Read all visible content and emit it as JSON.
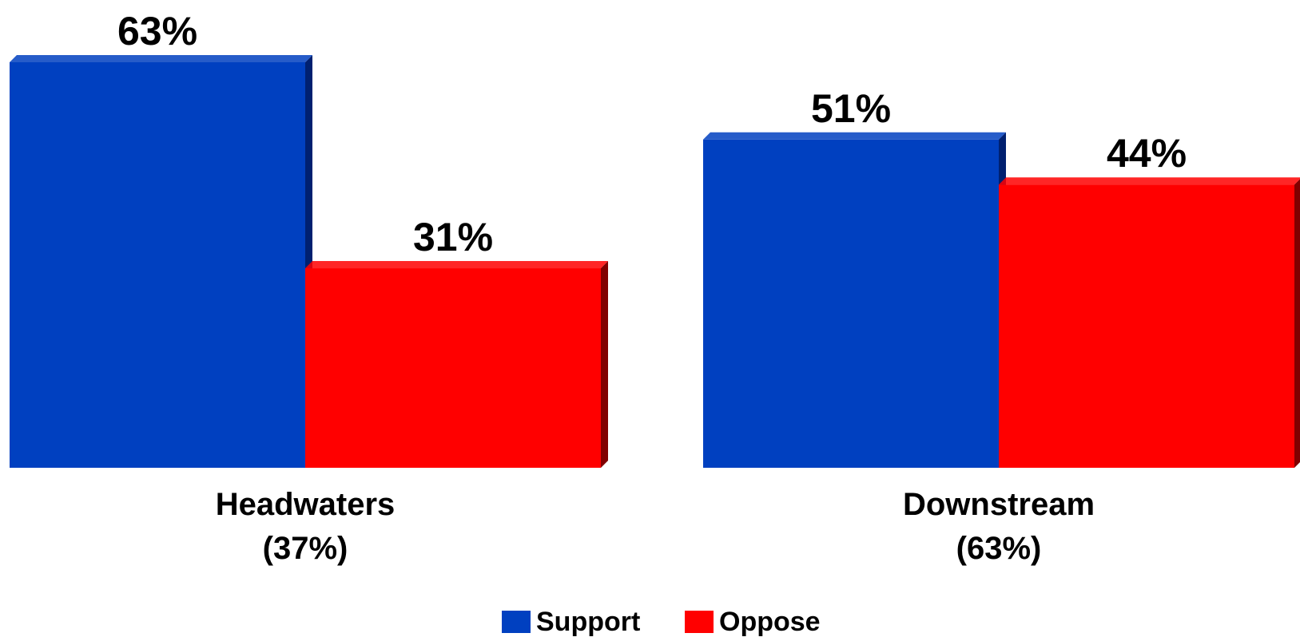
{
  "chart_data": {
    "type": "bar",
    "categories": [
      {
        "name": "Headwaters",
        "share": "(37%)"
      },
      {
        "name": "Downstream",
        "share": "(63%)"
      }
    ],
    "series": [
      {
        "name": "Support",
        "values": [
          63,
          51
        ],
        "labels": [
          "63%",
          "51%"
        ],
        "color": "#0040C0",
        "shade": "#002070"
      },
      {
        "name": "Oppose",
        "values": [
          31,
          44
        ],
        "labels": [
          "31%",
          "44%"
        ],
        "color": "#FF0000",
        "shade": "#800000"
      }
    ],
    "title": "",
    "xlabel": "",
    "ylabel": "",
    "ylim": [
      0,
      63
    ],
    "grid": false,
    "legend_position": "bottom"
  }
}
